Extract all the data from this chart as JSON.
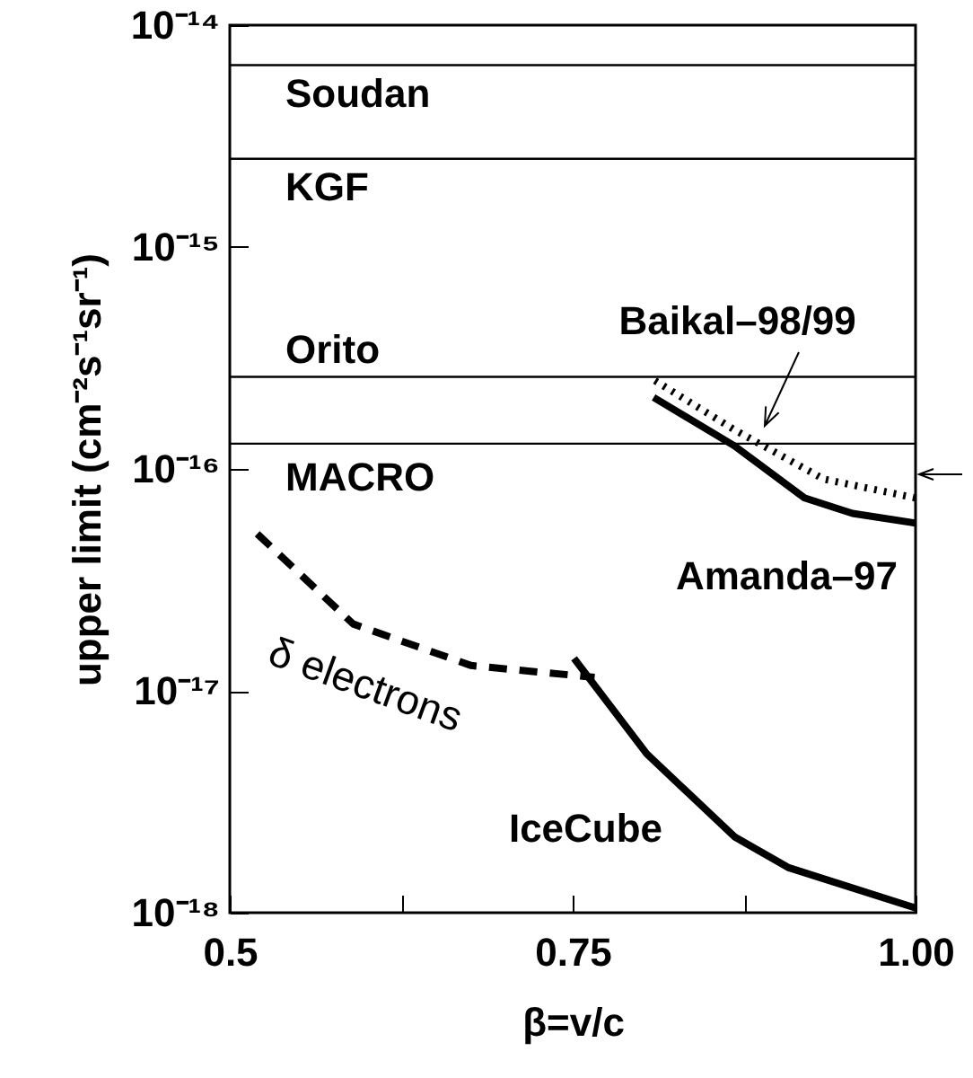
{
  "chart_data": {
    "type": "line",
    "xlabel": "β=v/c",
    "ylabel": "upper limit (cm⁻²s⁻¹sr⁻¹)",
    "log": true,
    "grid": false,
    "legend": false,
    "marker": "none",
    "xlim": [
      0.5,
      1.0
    ],
    "xticks": [
      0.5,
      {
        "value": 0.625,
        "label": null
      },
      0.75,
      {
        "value": 0.875,
        "label": null
      },
      {
        "value": 1.0,
        "label": "1.00"
      }
    ],
    "ylim": [
      1e-18,
      1e-14
    ],
    "yticks": [
      {
        "value": 1e-18,
        "label": "10⁻¹⁸"
      },
      {
        "value": 1e-17,
        "label": "10⁻¹⁷"
      },
      {
        "value": 1e-16,
        "label": "10⁻¹⁶"
      },
      {
        "value": 1e-15,
        "label": "10⁻¹⁵"
      },
      {
        "value": 1e-14,
        "label": "10⁻¹⁴"
      }
    ],
    "series": [
      {
        "name": "Amanda–97",
        "color": "#000000",
        "line_style": "solid",
        "x": [
          0.809,
          0.868,
          0.919,
          0.954,
          1.0
        ],
        "values": [
          2.1e-16,
          1.27e-16,
          7.4e-17,
          6.3e-17,
          5.7e-17
        ]
      },
      {
        "name": "Baikal–98/99",
        "color": "#000000",
        "line_style": "dotted",
        "x": [
          0.81,
          0.868,
          0.933,
          1.0
        ],
        "values": [
          2.5e-16,
          1.5e-16,
          9e-17,
          7.4e-17
        ]
      },
      {
        "name": "δ electrons",
        "color": "#000000",
        "line_style": "dashed",
        "x": [
          0.52,
          0.59,
          0.676,
          0.766
        ],
        "values": [
          5.1e-17,
          2e-17,
          1.3e-17,
          1.15e-17
        ]
      },
      {
        "name": "IceCube",
        "color": "#000000",
        "line_style": "solid",
        "x": [
          0.751,
          0.804,
          0.868,
          0.907,
          1.0
        ],
        "values": [
          1.4e-17,
          5.2e-18,
          2.2e-18,
          1.6e-18,
          1.05e-18
        ]
      }
    ],
    "ref_lines": [
      {
        "axis": "y",
        "value": 6.6e-15,
        "label": "Soudan",
        "color": "#000000"
      },
      {
        "axis": "y",
        "value": 2.5e-15,
        "label": "KGF",
        "color": "#000000"
      },
      {
        "axis": "y",
        "value": 2.6e-16,
        "label": "Orito",
        "color": "#000000"
      },
      {
        "axis": "y",
        "value": 1.3e-16,
        "label": "MACRO",
        "color": "#000000"
      }
    ]
  }
}
